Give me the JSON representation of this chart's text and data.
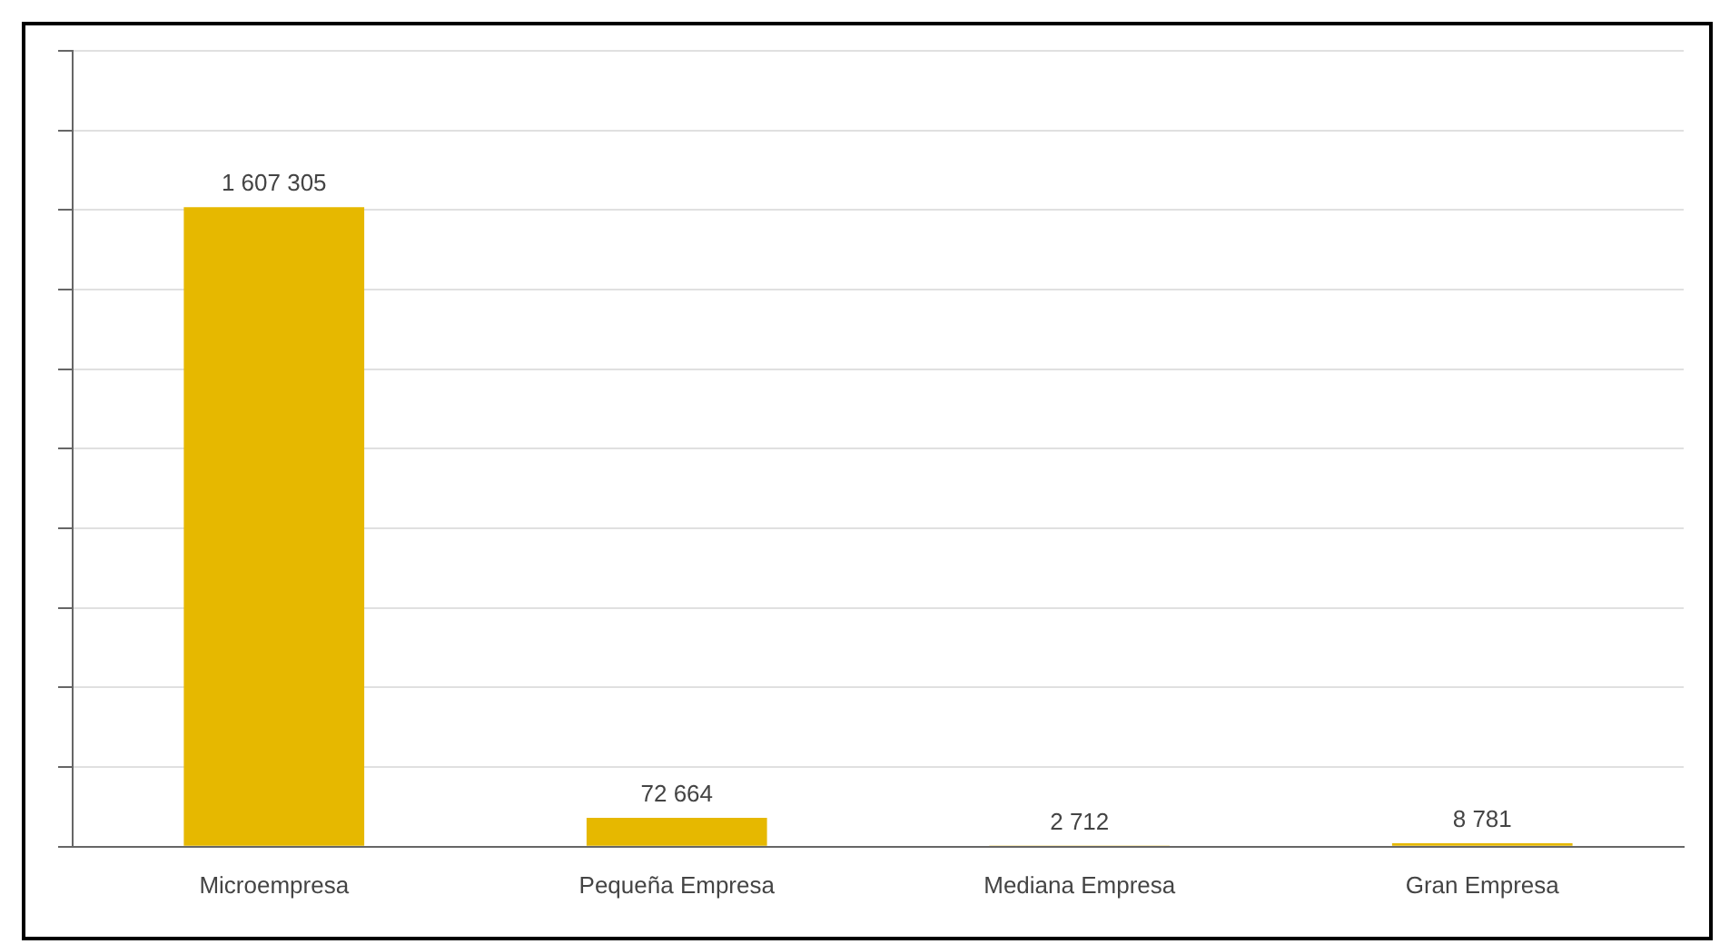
{
  "chart_data": {
    "type": "bar",
    "categories": [
      "Microempresa",
      "Pequeña Empresa",
      "Mediana Empresa",
      "Gran Empresa"
    ],
    "values": [
      1607305,
      72664,
      2712,
      8781
    ],
    "value_labels": [
      "1 607 305",
      "72 664",
      "2 712",
      "8 781"
    ],
    "color": "#e6b800",
    "ylim": [
      0,
      2000000
    ],
    "yticks": [
      {
        "value": 0,
        "label": null
      },
      {
        "value": 200000,
        "label": null
      },
      {
        "value": 400000,
        "label": null
      },
      {
        "value": 600000,
        "label": null
      },
      {
        "value": 800000,
        "label": null
      },
      {
        "value": 1000000,
        "label": null
      },
      {
        "value": 1200000,
        "label": null
      },
      {
        "value": 1400000,
        "label": null
      },
      {
        "value": 1600000,
        "label": null
      },
      {
        "value": 1800000,
        "label": null
      },
      {
        "value": 2000000,
        "label": null
      }
    ],
    "grid": "y",
    "tick_labels": "x",
    "legend": false
  }
}
